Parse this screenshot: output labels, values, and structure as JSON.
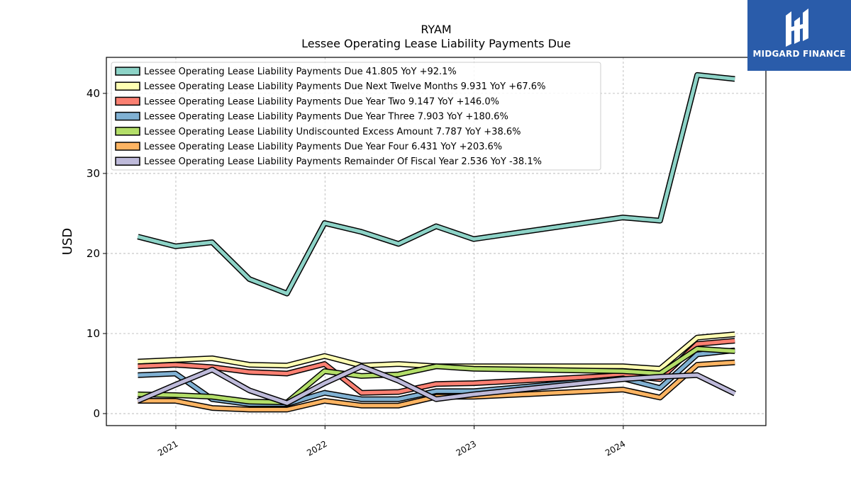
{
  "brand": {
    "name": "MIDGARD FINANCE"
  },
  "chart_data": {
    "type": "line",
    "title": "RYAM",
    "subtitle": "Lessee Operating Lease Liability Payments Due",
    "xlabel": "",
    "ylabel": "USD",
    "ylim": [
      -1.5,
      44.5
    ],
    "yticks": [
      0,
      10,
      20,
      30,
      40
    ],
    "xlim": [
      "2020-07-15",
      "2024-12-15"
    ],
    "xticks": [
      "2021",
      "2022",
      "2023",
      "2024"
    ],
    "grid": true,
    "legend_position": "top-left",
    "x": [
      "2020-09-30",
      "2020-12-31",
      "2021-03-31",
      "2021-06-30",
      "2021-09-30",
      "2021-12-31",
      "2022-03-31",
      "2022-06-30",
      "2022-09-30",
      "2022-12-31",
      "2023-12-31",
      "2024-03-31",
      "2024-06-30",
      "2024-09-30"
    ],
    "series": [
      {
        "name": "Lessee Operating Lease Liability Payments Due",
        "legend": "Lessee Operating Lease Liability Payments Due  41.805 YoY +92.1%",
        "color": "#8dd3c7",
        "values": [
          22.1,
          20.9,
          21.4,
          16.8,
          15.0,
          23.8,
          22.7,
          21.2,
          23.4,
          21.8,
          24.5,
          24.1,
          42.3,
          41.8
        ]
      },
      {
        "name": "Lessee Operating Lease Liability Payments Due Next Twelve Months",
        "legend": "Lessee Operating Lease Liability Payments Due Next Twelve Months  9.931 YoY +67.6%",
        "color": "#ffffb3",
        "values": [
          6.5,
          6.7,
          6.9,
          6.1,
          6.0,
          7.2,
          6.0,
          6.2,
          5.9,
          5.9,
          5.9,
          5.6,
          9.5,
          9.9
        ]
      },
      {
        "name": "Lessee Operating Lease Liability Payments Due Year Two",
        "legend": "Lessee Operating Lease Liability Payments Due Year Two  9.147 YoY +146.0%",
        "color": "#fb8072",
        "values": [
          5.9,
          6.1,
          5.8,
          5.2,
          5.0,
          6.2,
          2.6,
          2.7,
          3.7,
          3.8,
          4.8,
          4.3,
          8.7,
          9.1
        ]
      },
      {
        "name": "Lessee Operating Lease Liability Payments Due Year Three",
        "legend": "Lessee Operating Lease Liability Payments Due Year Three  7.903 YoY +180.6%",
        "color": "#80b1d3",
        "values": [
          4.8,
          5.0,
          1.8,
          1.2,
          1.2,
          2.6,
          1.8,
          1.8,
          2.8,
          2.8,
          4.4,
          3.2,
          7.4,
          7.9
        ]
      },
      {
        "name": "Lessee Operating Lease Liability Undiscounted Excess Amount",
        "legend": "Lessee Operating Lease Liability Undiscounted Excess Amount  7.787 YoY +38.6%",
        "color": "#b3de69",
        "values": [
          2.4,
          2.3,
          2.1,
          1.5,
          1.4,
          5.3,
          4.7,
          4.9,
          5.9,
          5.6,
          5.3,
          5.0,
          8.1,
          7.8
        ]
      },
      {
        "name": "Lessee Operating Lease Liability Payments Due Year Four",
        "legend": "Lessee Operating Lease Liability Payments Due Year Four  6.431 YoY +203.6%",
        "color": "#fdb462",
        "values": [
          1.6,
          1.6,
          0.7,
          0.5,
          0.5,
          1.6,
          1.0,
          1.0,
          2.1,
          2.1,
          3.0,
          2.0,
          6.1,
          6.4
        ]
      },
      {
        "name": "Lessee Operating Lease Liability Payments Remainder Of Fiscal Year",
        "legend": "Lessee Operating Lease Liability Payments Remainder Of Fiscal Year  2.536 YoY -38.1%",
        "color": "#bebada",
        "values": [
          1.6,
          3.6,
          5.5,
          2.9,
          1.3,
          3.8,
          5.9,
          4.1,
          1.8,
          2.4,
          4.3,
          4.6,
          4.8,
          2.5
        ]
      }
    ]
  }
}
